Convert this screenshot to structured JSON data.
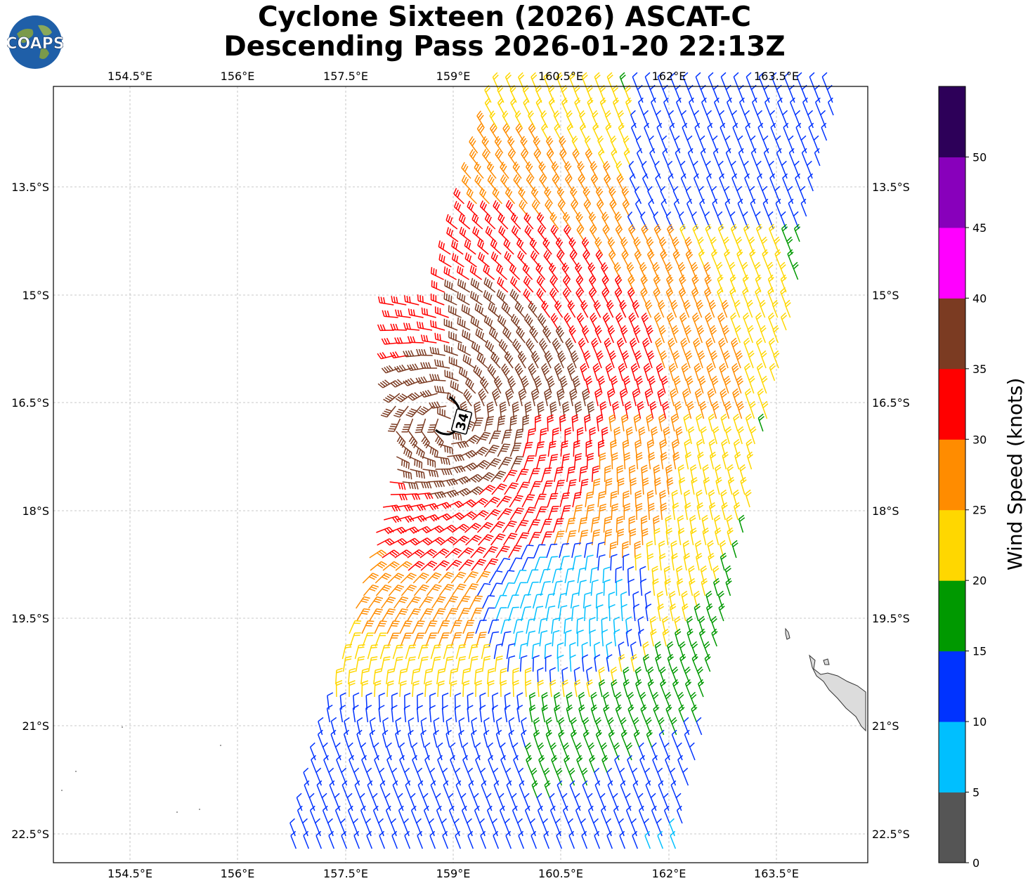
{
  "title": {
    "line1": "Cyclone Sixteen (2026) ASCAT-C",
    "line2": "Descending Pass 2026-01-20 22:13Z"
  },
  "logo": {
    "text": "COAPS",
    "icon": "globe-icon"
  },
  "map": {
    "lon_labels": [
      "154.5°E",
      "156°E",
      "157.5°E",
      "159°E",
      "160.5°E",
      "162°E",
      "163.5°E"
    ],
    "lat_labels": [
      "13.5°S",
      "15°S",
      "16.5°S",
      "18°S",
      "19.5°S",
      "21°S",
      "22.5°S"
    ],
    "radius_label": "34"
  },
  "colorbar": {
    "label": "Wind Speed (knots)",
    "ticks": [
      "0",
      "5",
      "10",
      "15",
      "20",
      "25",
      "30",
      "35",
      "40",
      "45",
      "50"
    ],
    "colors": [
      "#555555",
      "#00bfff",
      "#0033ff",
      "#009900",
      "#ffd700",
      "#ff8c00",
      "#ff0000",
      "#7b3b22",
      "#ff00ff",
      "#8800bb",
      "#2d0059"
    ]
  },
  "chart_data": {
    "type": "wind-barb map",
    "lon_range": [
      153.3,
      164.6
    ],
    "lat_range": [
      -22.9,
      -12.1
    ],
    "wind_speed_bins_knots": [
      0,
      5,
      10,
      15,
      20,
      25,
      30,
      35,
      40,
      45,
      50
    ]
  }
}
